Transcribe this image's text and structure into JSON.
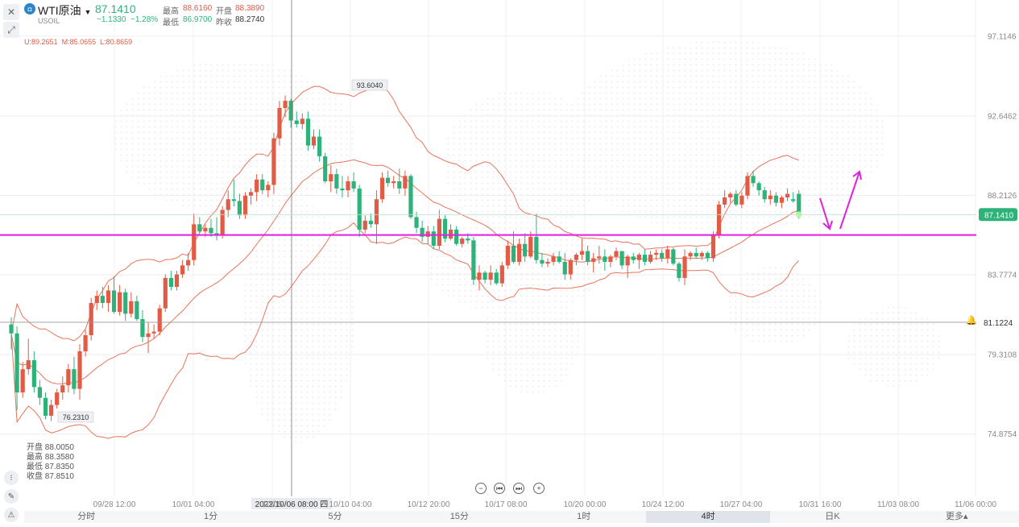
{
  "header": {
    "name": "WTI原油",
    "symbol": "USOIL",
    "price": "87.1410",
    "change": "−1.1330",
    "change_pct": "−1.28%",
    "high_label": "最高",
    "high": "88.6160",
    "open_label": "开盘",
    "open": "88.3890",
    "low_label": "最低",
    "low": "86.9700",
    "prev_label": "昨收",
    "prev": "88.2740"
  },
  "indicator": {
    "u": "U:89.2651",
    "m": "M:85.0655",
    "l": "L:80.8659"
  },
  "bar_info": {
    "open": "开盘 88.0050",
    "high": "最高 88.3580",
    "low": "最低 87.8350",
    "close": "收盘 87.8510"
  },
  "tabs": [
    "分时",
    "1分",
    "5分",
    "15分",
    "1时",
    "4时",
    "日K",
    "更多▴"
  ],
  "active_tab": "4时",
  "colors": {
    "up": "#e25b45",
    "down": "#2db37a",
    "band": "#e8755a",
    "line": "#e020e0",
    "price_tag": "#2db37a"
  },
  "chart_data": {
    "type": "candlestick",
    "y_ticks": [
      97.1146,
      92.6462,
      88.2126,
      83.7774,
      79.3108,
      74.8754
    ],
    "x_ticks": [
      "09/28 12:00",
      "10/01 04:00",
      "10/05 ",
      "10/10 04:00",
      "10/12 20:00",
      "10/17 08:00",
      "10/20 00:00",
      "10/24 12:00",
      "10/27 04:00",
      "10/31 16:00",
      "11/03 08:00",
      "11/06 00:00"
    ],
    "crosshair_label": "2022/10/06 08:00 四",
    "current_price": "87.1410",
    "horizontal_line": "81.1224",
    "high_marker": "93.6040",
    "low_marker": "76.2310",
    "support_line": 86.0,
    "candles": [
      [
        81.0,
        81.4,
        79.6,
        80.5
      ],
      [
        80.5,
        80.9,
        76.2,
        77.2
      ],
      [
        77.2,
        78.9,
        76.9,
        78.5
      ],
      [
        78.5,
        80.2,
        78.2,
        79.0
      ],
      [
        79.0,
        79.5,
        77.2,
        77.5
      ],
      [
        77.5,
        77.9,
        76.5,
        76.9
      ],
      [
        76.9,
        77.2,
        75.7,
        75.9
      ],
      [
        75.9,
        76.8,
        75.6,
        76.5
      ],
      [
        76.5,
        77.4,
        76.3,
        77.2
      ],
      [
        77.2,
        78.1,
        76.8,
        77.6
      ],
      [
        77.6,
        78.8,
        77.2,
        78.5
      ],
      [
        78.5,
        79.2,
        77.1,
        77.4
      ],
      [
        77.4,
        79.9,
        76.8,
        79.5
      ],
      [
        79.5,
        80.7,
        79.2,
        80.4
      ],
      [
        80.4,
        82.5,
        80.1,
        82.2
      ],
      [
        82.2,
        82.9,
        81.8,
        82.6
      ],
      [
        82.6,
        83.1,
        81.9,
        82.2
      ],
      [
        82.2,
        83.2,
        81.7,
        82.9
      ],
      [
        82.9,
        83.7,
        81.6,
        81.7
      ],
      [
        81.7,
        83.2,
        81.5,
        82.8
      ],
      [
        82.8,
        83.0,
        81.2,
        81.6
      ],
      [
        81.6,
        82.8,
        81.4,
        82.3
      ],
      [
        82.3,
        82.6,
        81.2,
        81.3
      ],
      [
        81.3,
        81.8,
        80.0,
        80.3
      ],
      [
        80.3,
        81.1,
        79.4,
        80.5
      ],
      [
        80.5,
        81.0,
        80.2,
        80.6
      ],
      [
        80.6,
        82.1,
        80.4,
        81.9
      ],
      [
        81.9,
        83.8,
        81.7,
        83.6
      ],
      [
        83.6,
        84.0,
        82.9,
        83.1
      ],
      [
        83.1,
        84.0,
        82.9,
        83.8
      ],
      [
        83.8,
        84.6,
        83.6,
        84.3
      ],
      [
        84.3,
        85.0,
        84.0,
        84.6
      ],
      [
        84.6,
        87.2,
        84.3,
        86.6
      ],
      [
        86.6,
        87.0,
        86.1,
        86.2
      ],
      [
        86.2,
        86.6,
        85.9,
        86.4
      ],
      [
        86.4,
        86.9,
        85.9,
        86.1
      ],
      [
        86.1,
        87.0,
        85.7,
        86.0
      ],
      [
        86.0,
        87.6,
        85.8,
        87.4
      ],
      [
        87.4,
        88.5,
        87.0,
        88.0
      ],
      [
        88.0,
        89.1,
        87.6,
        87.9
      ],
      [
        87.9,
        88.3,
        86.9,
        87.1
      ],
      [
        87.1,
        88.4,
        86.9,
        88.2
      ],
      [
        88.2,
        88.6,
        87.7,
        88.4
      ],
      [
        88.4,
        89.4,
        87.9,
        89.1
      ],
      [
        89.1,
        89.4,
        88.3,
        88.5
      ],
      [
        88.5,
        89.0,
        88.1,
        88.8
      ],
      [
        88.8,
        91.7,
        88.3,
        91.4
      ],
      [
        91.4,
        93.5,
        91.0,
        93.1
      ],
      [
        93.1,
        93.8,
        92.6,
        93.5
      ],
      [
        93.5,
        93.6,
        92.0,
        92.4
      ],
      [
        92.4,
        92.9,
        92.0,
        92.2
      ],
      [
        92.2,
        92.8,
        91.9,
        92.5
      ],
      [
        92.5,
        92.9,
        90.7,
        91.0
      ],
      [
        91.0,
        91.9,
        90.8,
        91.5
      ],
      [
        91.5,
        91.9,
        90.1,
        90.4
      ],
      [
        90.4,
        90.6,
        88.9,
        89.0
      ],
      [
        89.0,
        89.9,
        88.4,
        89.4
      ],
      [
        89.4,
        89.7,
        88.3,
        88.6
      ],
      [
        88.6,
        89.3,
        88.1,
        88.5
      ],
      [
        88.5,
        89.3,
        88.1,
        89.0
      ],
      [
        89.0,
        89.5,
        88.4,
        88.6
      ],
      [
        88.6,
        88.8,
        85.9,
        86.3
      ],
      [
        86.3,
        87.1,
        86.1,
        86.8
      ],
      [
        86.8,
        87.2,
        86.4,
        86.6
      ],
      [
        86.6,
        88.5,
        85.5,
        88.0
      ],
      [
        88.0,
        89.5,
        87.8,
        89.2
      ],
      [
        89.2,
        89.6,
        88.7,
        88.9
      ],
      [
        88.9,
        89.3,
        88.6,
        89.0
      ],
      [
        89.0,
        89.7,
        88.3,
        88.6
      ],
      [
        88.6,
        89.6,
        88.2,
        89.3
      ],
      [
        89.3,
        89.4,
        86.9,
        87.0
      ],
      [
        87.0,
        87.3,
        86.1,
        86.4
      ],
      [
        86.4,
        86.8,
        85.6,
        85.9
      ],
      [
        85.9,
        86.5,
        85.5,
        86.2
      ],
      [
        86.2,
        86.5,
        85.2,
        85.4
      ],
      [
        85.4,
        87.4,
        85.2,
        86.9
      ],
      [
        86.9,
        87.1,
        85.6,
        85.8
      ],
      [
        85.8,
        86.6,
        85.7,
        86.3
      ],
      [
        86.3,
        86.5,
        85.4,
        85.5
      ],
      [
        85.5,
        85.9,
        85.3,
        85.8
      ],
      [
        85.8,
        86.1,
        85.5,
        85.7
      ],
      [
        85.7,
        85.9,
        83.2,
        83.5
      ],
      [
        83.5,
        84.3,
        82.9,
        83.9
      ],
      [
        83.9,
        84.0,
        83.3,
        83.5
      ],
      [
        83.5,
        84.3,
        83.2,
        83.9
      ],
      [
        83.9,
        84.1,
        83.2,
        83.3
      ],
      [
        83.3,
        84.5,
        83.1,
        84.3
      ],
      [
        84.3,
        85.7,
        84.1,
        85.4
      ],
      [
        85.4,
        86.2,
        84.4,
        84.5
      ],
      [
        84.5,
        85.8,
        84.3,
        85.5
      ],
      [
        85.5,
        86.1,
        84.5,
        84.8
      ],
      [
        84.8,
        86.2,
        84.7,
        85.9
      ],
      [
        85.9,
        87.2,
        84.4,
        84.6
      ],
      [
        84.6,
        85.0,
        84.2,
        84.4
      ],
      [
        84.4,
        84.7,
        84.2,
        84.5
      ],
      [
        84.5,
        85.0,
        84.3,
        84.8
      ],
      [
        84.8,
        85.1,
        84.4,
        84.5
      ],
      [
        84.5,
        85.0,
        83.5,
        83.8
      ],
      [
        83.8,
        84.7,
        83.5,
        84.6
      ],
      [
        84.6,
        85.0,
        84.3,
        84.9
      ],
      [
        84.9,
        85.8,
        84.6,
        85.1
      ],
      [
        85.1,
        85.4,
        84.3,
        84.5
      ],
      [
        84.5,
        85.0,
        83.9,
        84.7
      ],
      [
        84.7,
        85.4,
        84.4,
        84.8
      ],
      [
        84.8,
        85.2,
        84.0,
        84.5
      ],
      [
        84.5,
        84.9,
        84.2,
        84.8
      ],
      [
        84.8,
        85.3,
        84.6,
        85.1
      ],
      [
        85.1,
        85.1,
        84.1,
        84.3
      ],
      [
        84.3,
        84.9,
        83.6,
        84.8
      ],
      [
        84.8,
        85.0,
        84.4,
        84.6
      ],
      [
        84.6,
        85.0,
        84.1,
        84.9
      ],
      [
        84.9,
        85.2,
        84.3,
        84.5
      ],
      [
        84.5,
        85.1,
        84.4,
        84.9
      ],
      [
        84.9,
        85.2,
        84.6,
        85.0
      ],
      [
        85.0,
        85.2,
        84.5,
        84.7
      ],
      [
        84.7,
        85.4,
        84.4,
        85.2
      ],
      [
        85.2,
        85.3,
        84.3,
        84.4
      ],
      [
        84.4,
        84.5,
        83.4,
        83.6
      ],
      [
        83.6,
        85.2,
        83.2,
        84.8
      ],
      [
        84.8,
        85.1,
        84.6,
        85.0
      ],
      [
        85.0,
        85.3,
        84.7,
        84.8
      ],
      [
        84.8,
        85.1,
        84.6,
        85.0
      ],
      [
        85.0,
        85.1,
        84.5,
        84.7
      ],
      [
        84.7,
        86.2,
        84.5,
        86.0
      ],
      [
        86.0,
        87.9,
        85.8,
        87.7
      ],
      [
        87.7,
        88.5,
        87.5,
        88.1
      ],
      [
        88.1,
        88.4,
        87.8,
        88.3
      ],
      [
        88.3,
        88.5,
        87.6,
        87.7
      ],
      [
        87.7,
        88.4,
        87.5,
        88.2
      ],
      [
        88.2,
        89.5,
        88.0,
        89.3
      ],
      [
        89.3,
        89.6,
        88.7,
        88.9
      ],
      [
        88.9,
        89.0,
        88.2,
        88.5
      ],
      [
        88.5,
        88.7,
        87.8,
        88.0
      ],
      [
        88.0,
        88.5,
        87.7,
        88.2
      ],
      [
        88.2,
        88.4,
        87.6,
        87.8
      ],
      [
        87.8,
        88.2,
        87.5,
        88.1
      ],
      [
        88.1,
        88.6,
        87.9,
        88.3
      ],
      [
        88.0,
        88.4,
        87.8,
        87.9
      ],
      [
        88.3,
        88.5,
        86.9,
        87.1
      ]
    ]
  }
}
